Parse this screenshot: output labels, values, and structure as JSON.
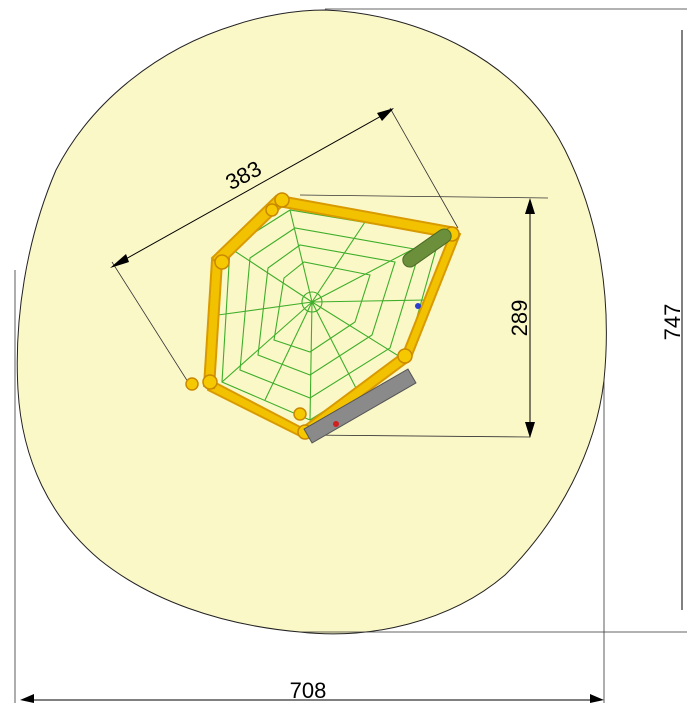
{
  "dimensions": {
    "side_length": "383",
    "depth": "289",
    "total_height": "747",
    "total_width": "708"
  },
  "colors": {
    "safety_zone_fill": "#fbf8c8",
    "frame": "#f2c200",
    "net": "#3fae2a",
    "outline": "#000000"
  }
}
